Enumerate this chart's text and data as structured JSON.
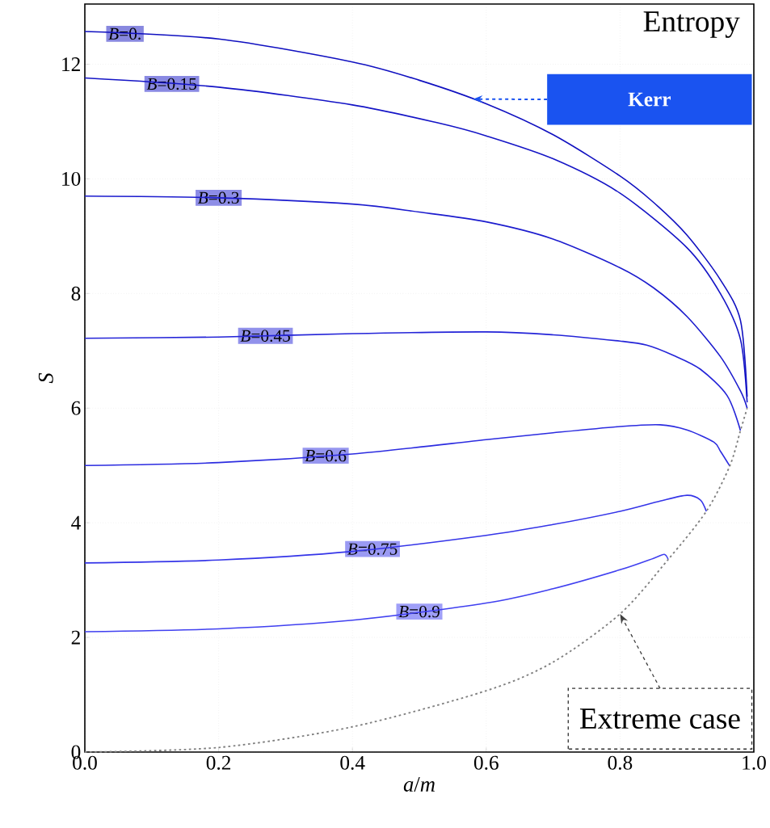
{
  "chart_data": {
    "type": "line",
    "title": "Entropy",
    "xlabel": "*a*/*m*",
    "ylabel": "*S*",
    "xlim": [
      0,
      1
    ],
    "ylim": [
      0,
      13.05
    ],
    "xticks": [
      {
        "value": 0,
        "label": "0.0"
      },
      {
        "value": 0.2,
        "label": "0.2"
      },
      {
        "value": 0.4,
        "label": "0.4"
      },
      {
        "value": 0.6,
        "label": "0.6"
      },
      {
        "value": 0.8,
        "label": "0.8"
      },
      {
        "value": 1,
        "label": "1.0"
      }
    ],
    "yticks": [
      0,
      2,
      4,
      6,
      8,
      10,
      12
    ],
    "grid": true,
    "marker": "none",
    "series": [
      {
        "name": "*B*=0.",
        "color": "#1010c0",
        "x": [
          0,
          0.2,
          0.4,
          0.5,
          0.6,
          0.7,
          0.8,
          0.85,
          0.9,
          0.95,
          0.98,
          0.99
        ],
        "values": [
          12.57,
          12.44,
          12.04,
          11.72,
          11.31,
          10.77,
          10.05,
          9.59,
          9.02,
          8.24,
          7.53,
          6.2
        ]
      },
      {
        "name": "*B*=0.15",
        "color": "#1414c6",
        "x": [
          0,
          0.2,
          0.4,
          0.53,
          0.6,
          0.7,
          0.8,
          0.9,
          0.95,
          0.98,
          0.99
        ],
        "values": [
          11.76,
          11.6,
          11.29,
          10.97,
          10.75,
          10.35,
          9.75,
          8.8,
          8.0,
          7.2,
          6.1
        ]
      },
      {
        "name": "*B*=0.3",
        "color": "#1c1cce",
        "x": [
          0,
          0.2,
          0.4,
          0.5,
          0.6,
          0.7,
          0.8,
          0.85,
          0.9,
          0.95,
          0.98,
          0.99
        ],
        "values": [
          9.7,
          9.67,
          9.56,
          9.42,
          9.25,
          8.95,
          8.45,
          8.1,
          7.6,
          6.9,
          6.3,
          6.0
        ]
      },
      {
        "name": "*B*=0.45",
        "color": "#2424d8",
        "x": [
          0,
          0.2,
          0.4,
          0.6,
          0.7,
          0.8,
          0.84,
          0.88,
          0.92,
          0.96,
          0.98
        ],
        "values": [
          7.22,
          7.24,
          7.3,
          7.33,
          7.28,
          7.17,
          7.1,
          6.92,
          6.68,
          6.22,
          5.61
        ]
      },
      {
        "name": "*B*=0.6",
        "color": "#2c2ce0",
        "x": [
          0,
          0.2,
          0.4,
          0.6,
          0.7,
          0.8,
          0.86,
          0.9,
          0.94,
          0.95,
          0.964
        ],
        "values": [
          5.0,
          5.05,
          5.2,
          5.45,
          5.57,
          5.68,
          5.71,
          5.62,
          5.41,
          5.25,
          4.99
        ]
      },
      {
        "name": "*B*=0.75",
        "color": "#3535e8",
        "x": [
          0,
          0.2,
          0.4,
          0.6,
          0.7,
          0.8,
          0.86,
          0.9,
          0.92,
          0.929
        ],
        "values": [
          3.3,
          3.35,
          3.5,
          3.78,
          3.97,
          4.2,
          4.38,
          4.48,
          4.4,
          4.2
        ]
      },
      {
        "name": "*B*=0.9",
        "color": "#4040f0",
        "x": [
          0,
          0.2,
          0.4,
          0.6,
          0.7,
          0.8,
          0.85,
          0.866,
          0.872
        ],
        "values": [
          2.1,
          2.15,
          2.3,
          2.6,
          2.85,
          3.18,
          3.38,
          3.45,
          3.36
        ]
      },
      {
        "color": "#808080",
        "line_style": "dotted",
        "x": [
          0,
          0.2,
          0.4,
          0.6,
          0.7,
          0.8,
          0.872,
          0.929,
          0.964,
          0.98,
          0.99
        ],
        "values": [
          0,
          0.08,
          0.44,
          1.07,
          1.57,
          2.41,
          3.36,
          4.2,
          4.99,
          5.61,
          6.0
        ]
      }
    ],
    "annotations": [
      "Kerr",
      "Extreme case"
    ]
  }
}
